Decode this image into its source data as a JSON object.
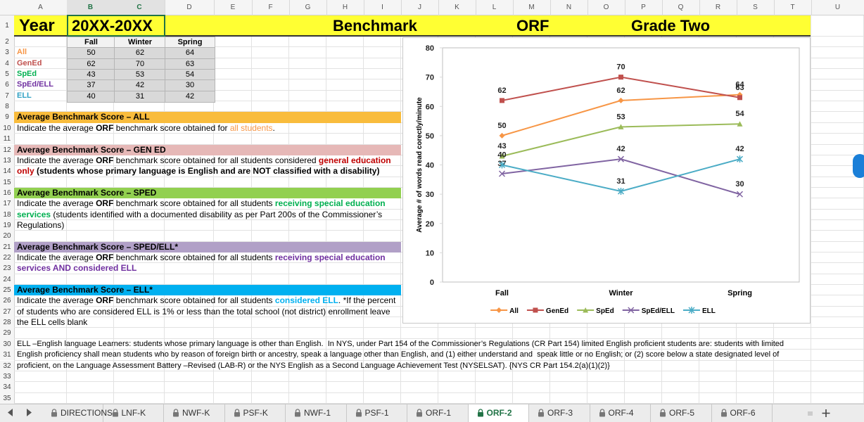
{
  "column_headers": [
    "A",
    "B",
    "C",
    "D",
    "E",
    "F",
    "G",
    "H",
    "I",
    "J",
    "K",
    "L",
    "M",
    "N",
    "O",
    "P",
    "Q",
    "R",
    "S",
    "T",
    "U"
  ],
  "row_numbers": [
    1,
    2,
    3,
    4,
    5,
    6,
    7,
    8,
    9,
    10,
    11,
    12,
    13,
    14,
    15,
    16,
    17,
    18,
    19,
    20,
    21,
    22,
    23,
    24,
    25,
    26,
    27,
    28,
    29,
    30,
    31,
    32,
    33,
    34,
    35
  ],
  "header": {
    "year_label": "Year",
    "year": "20XX-20XX",
    "benchmark": "Benchmark",
    "measure": "ORF",
    "grade": "Grade Two"
  },
  "table": {
    "columns": [
      "Fall",
      "Winter",
      "Spring"
    ],
    "rows": [
      {
        "label": "All",
        "color": "#f79646",
        "values": [
          50,
          62,
          64
        ]
      },
      {
        "label": "GenEd",
        "color": "#c0504d",
        "values": [
          62,
          70,
          63
        ]
      },
      {
        "label": "SpEd",
        "color": "#00b050",
        "values": [
          43,
          53,
          54
        ]
      },
      {
        "label": "SpEd/ELL",
        "color": "#7030a0",
        "values": [
          37,
          42,
          30
        ]
      },
      {
        "label": "ELL",
        "color": "#31a2c4",
        "values": [
          40,
          31,
          42
        ]
      }
    ]
  },
  "sections": [
    {
      "title": "Average Benchmark Score – ALL",
      "color": "#f9bc3c",
      "lines": [
        [
          "Indicate the average ",
          {
            "text": "ORF",
            "bold": true
          },
          " benchmark score obtained for ",
          {
            "text": "all students",
            "color": "#f79646"
          },
          "."
        ]
      ]
    },
    {
      "title": "Average Benchmark Score – GEN ED",
      "color": "#e6b8b7",
      "lines": [
        [
          "Indicate the average ",
          {
            "text": "ORF",
            "bold": true
          },
          " benchmark score obtained for all students considered ",
          {
            "text": "general education",
            "bold": true,
            "color": "#c00000"
          }
        ],
        [
          {
            "text": "only",
            "bold": true,
            "color": "#c00000"
          },
          {
            "text": " (students whose primary language is English and are NOT classified with a disability)",
            "bold": true
          }
        ]
      ]
    },
    {
      "title": "Average Benchmark Score – SPED",
      "color": "#92d050",
      "lines": [
        [
          "Indicate the average ",
          {
            "text": "ORF",
            "bold": true
          },
          " benchmark score obtained for all students ",
          {
            "text": "receiving special education",
            "bold": true,
            "color": "#00b050"
          }
        ],
        [
          {
            "text": "services",
            "bold": true,
            "color": "#00b050"
          },
          " (students identified with a documented disability as per Part 200s of the Commissioner’s"
        ],
        [
          "Regulations)"
        ]
      ]
    },
    {
      "title": "Average Benchmark Score – SPED/ELL*",
      "color": "#b1a0c7",
      "lines": [
        [
          "Indicate the average ",
          {
            "text": "ORF",
            "bold": true
          },
          " benchmark score obtained for all students ",
          {
            "text": "receiving special education",
            "bold": true,
            "color": "#7030a0"
          }
        ],
        [
          {
            "text": "services AND considered ELL",
            "bold": true,
            "color": "#7030a0"
          }
        ]
      ]
    },
    {
      "title": "Average Benchmark Score – ELL*",
      "color": "#00b0f0",
      "lines": [
        [
          "Indicate the average ",
          {
            "text": "ORF",
            "bold": true
          },
          " benchmark score obtained for all students ",
          {
            "text": "considered ELL",
            "bold": true,
            "color": "#00b0f0"
          },
          ". *If the percent"
        ],
        [
          "of students who are considered ELL is 1% or less than the total school (not district) enrollment leave"
        ],
        [
          "the ELL cells blank"
        ]
      ]
    }
  ],
  "footnote": [
    "ELL –English language Learners: students whose primary language is other than English.  In NYS, under Part 154 of the Commissioner’s Regulations (CR Part 154) limited English proficient students are: students with limited",
    "English proficiency shall mean students who by reason of foreign birth or ancestry, speak a language other than English, and (1) either understand and  speak little or no English; or (2) score below a state designated level of",
    "proficient, on the Language Assessment Battery –Revised (LAB-R) or the NYS English as a Second Language Achievement Test (NYSELSAT). {NYS CR Part 154.2(a)(1)(2)}"
  ],
  "chart_data": {
    "type": "line",
    "y_label": "Average # of words read corectly/minute",
    "categories": [
      "Fall",
      "Winter",
      "Spring"
    ],
    "series": [
      {
        "name": "All",
        "color": "#f79646",
        "marker": "diamond",
        "values": [
          50,
          62,
          64
        ]
      },
      {
        "name": "GenEd",
        "color": "#c0504d",
        "marker": "square",
        "values": [
          62,
          70,
          63
        ]
      },
      {
        "name": "SpEd",
        "color": "#9bbb59",
        "marker": "triangle",
        "values": [
          43,
          53,
          54
        ]
      },
      {
        "name": "SpEd/ELL",
        "color": "#8064a2",
        "marker": "x",
        "values": [
          37,
          42,
          30
        ]
      },
      {
        "name": "ELL",
        "color": "#4bacc6",
        "marker": "star",
        "values": [
          40,
          31,
          42
        ]
      }
    ],
    "ylim": [
      0,
      80
    ],
    "yticks": [
      0,
      10,
      20,
      30,
      40,
      50,
      60,
      70,
      80
    ],
    "grid": false,
    "legend": "bottom",
    "data_labels": true
  },
  "tabs": [
    "DIRECTIONS",
    "LNF-K",
    "NWF-K",
    "PSF-K",
    "NWF-1",
    "PSF-1",
    "ORF-1",
    "ORF-2",
    "ORF-3",
    "ORF-4",
    "ORF-5",
    "ORF-6"
  ],
  "active_tab": "ORF-2"
}
